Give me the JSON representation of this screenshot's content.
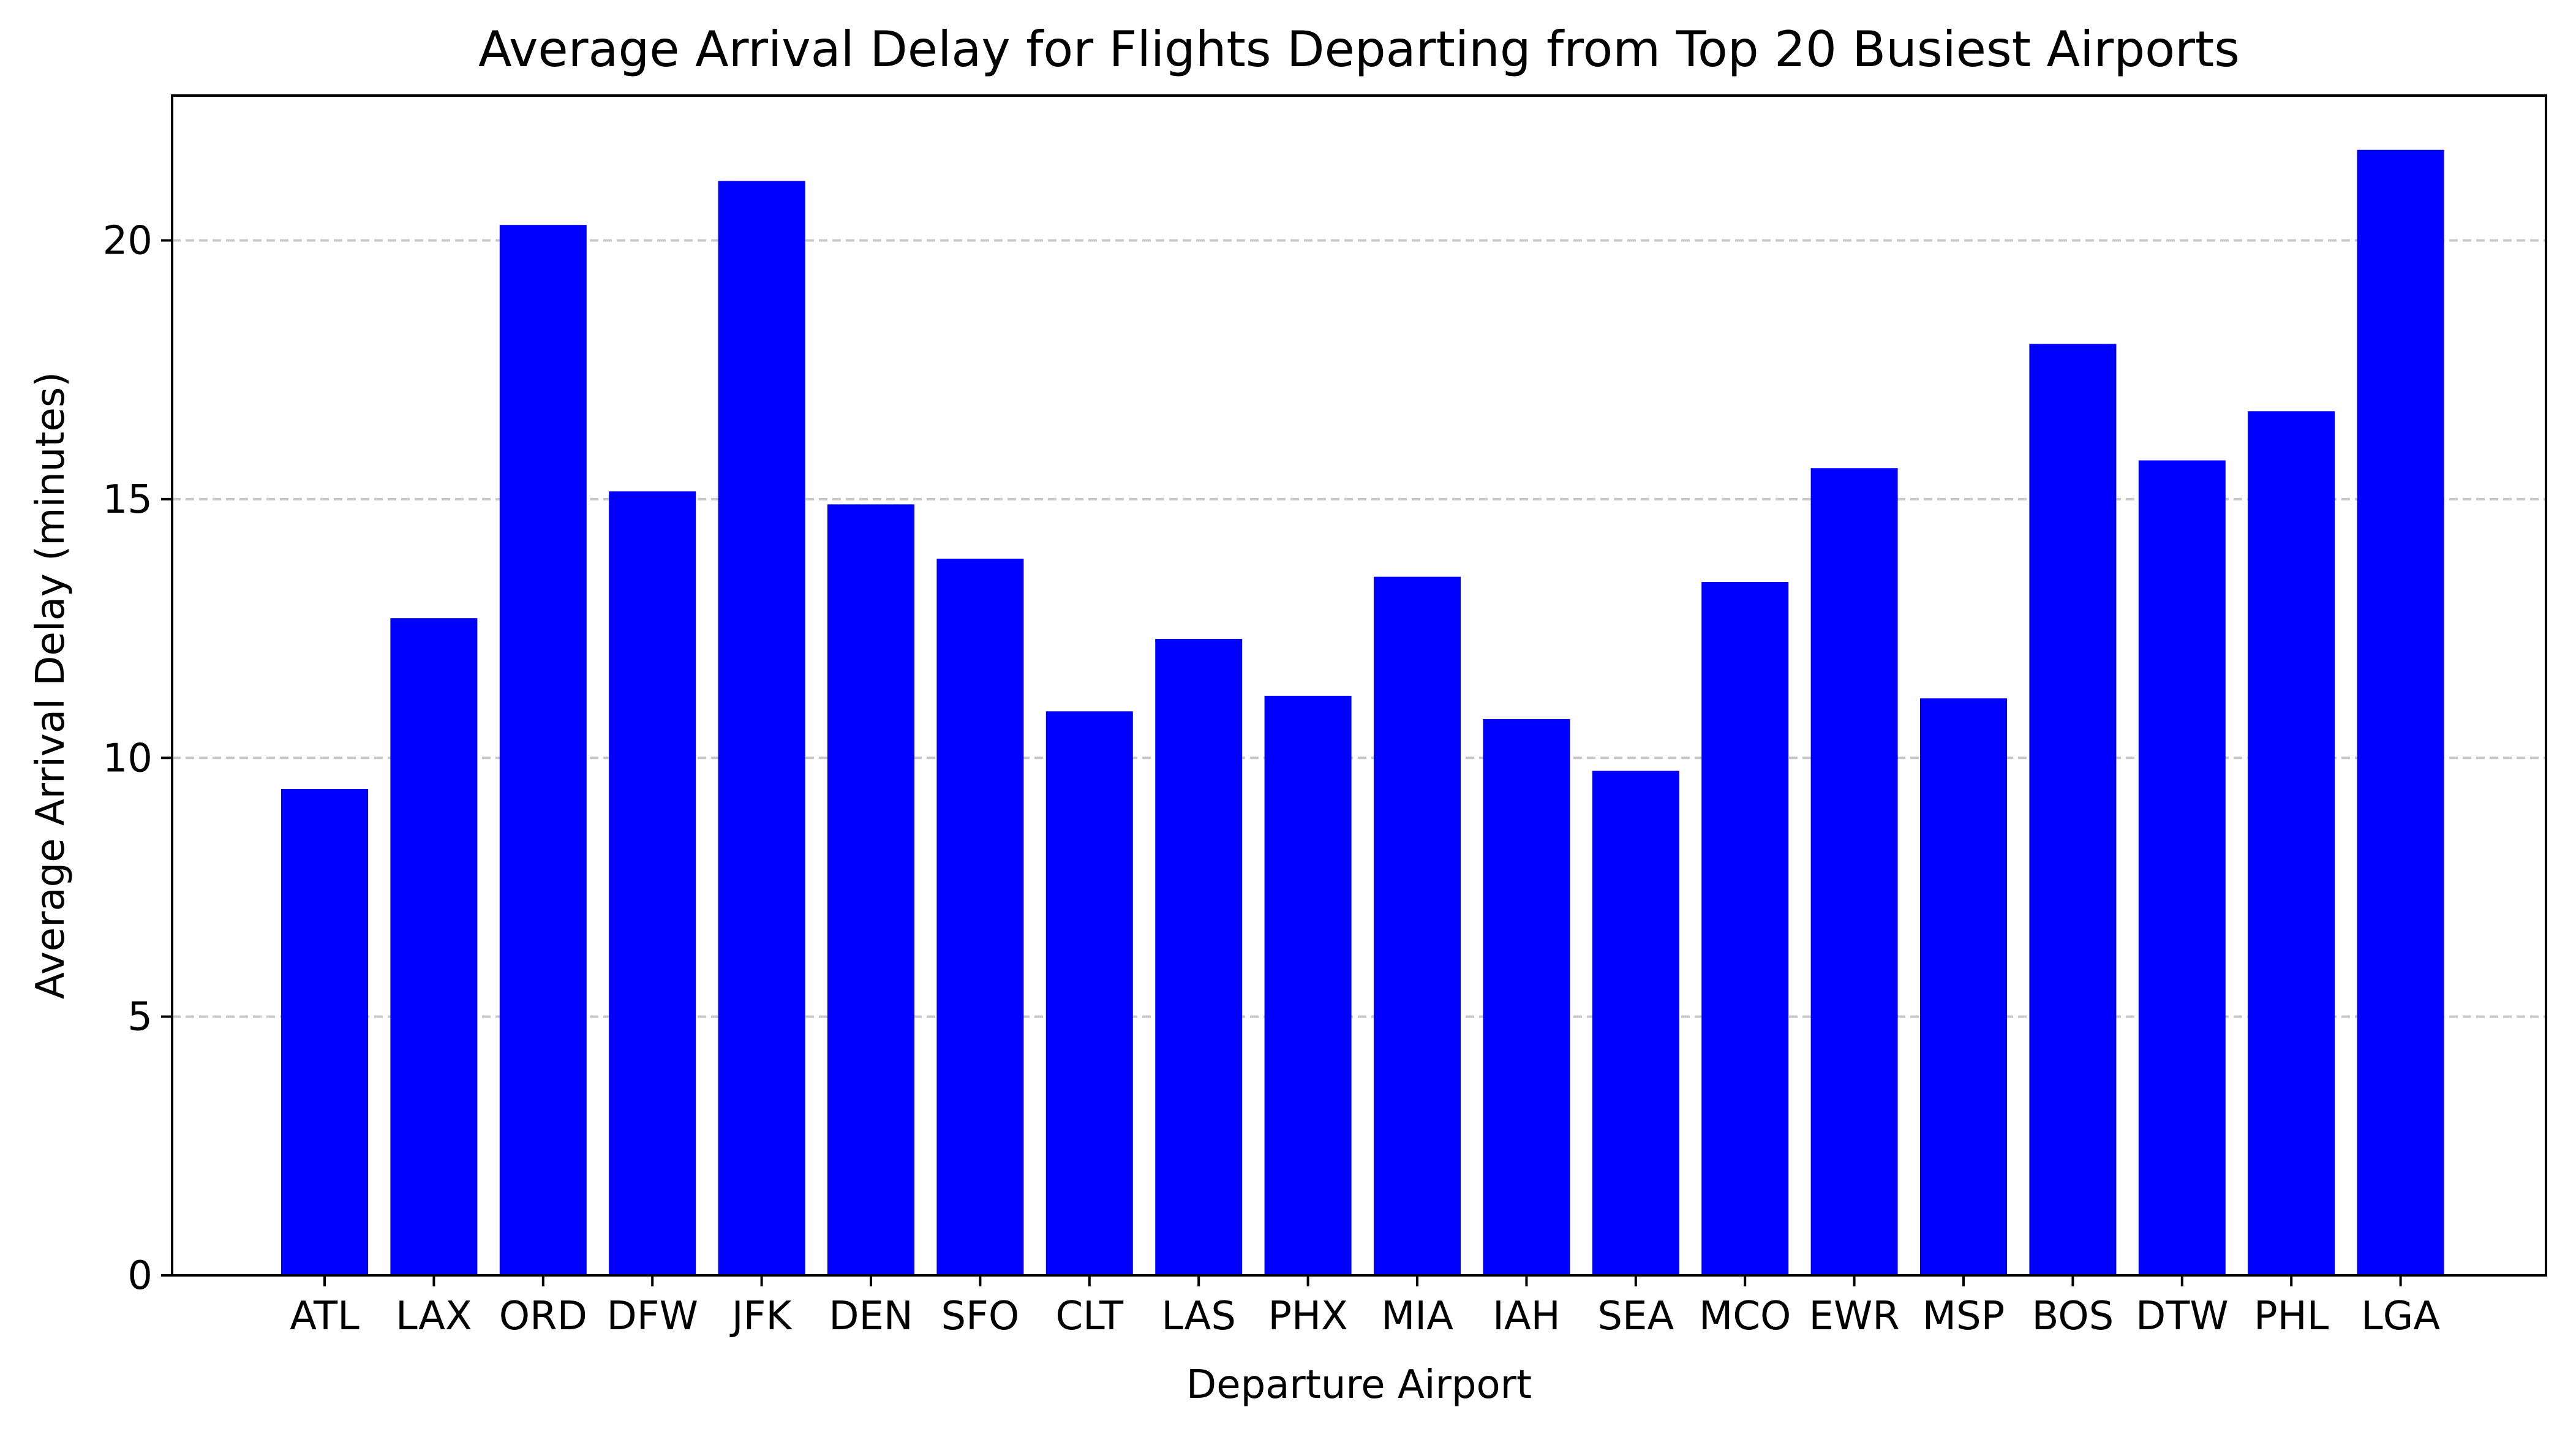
{
  "chart_data": {
    "type": "bar",
    "title": "Average Arrival Delay for Flights Departing from Top 20 Busiest Airports",
    "xlabel": "Departure Airport",
    "ylabel": "Average Arrival Delay (minutes)",
    "categories": [
      "ATL",
      "LAX",
      "ORD",
      "DFW",
      "JFK",
      "DEN",
      "SFO",
      "CLT",
      "LAS",
      "PHX",
      "MIA",
      "IAH",
      "SEA",
      "MCO",
      "EWR",
      "MSP",
      "BOS",
      "DTW",
      "PHL",
      "LGA"
    ],
    "values": [
      9.4,
      12.7,
      20.3,
      15.15,
      21.15,
      14.9,
      13.85,
      10.9,
      12.3,
      11.2,
      13.5,
      10.75,
      9.75,
      13.4,
      15.6,
      11.15,
      18.0,
      15.75,
      16.7,
      21.75
    ],
    "ylim": [
      0,
      22.8
    ],
    "yticks": [
      0,
      5,
      10,
      15,
      20
    ],
    "grid": "horizontal, dashed",
    "bar_color": "#0000ff",
    "grid_color": "#c8c8c8"
  }
}
